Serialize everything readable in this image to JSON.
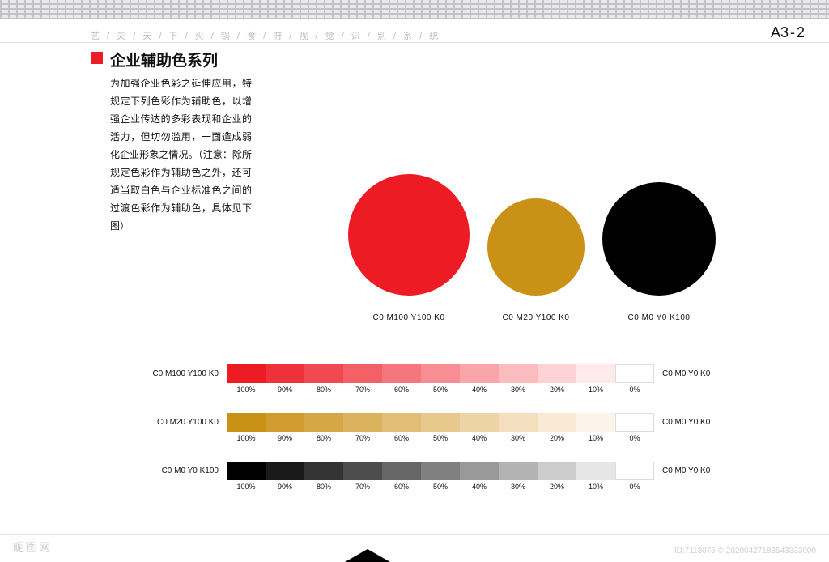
{
  "page": {
    "code_prefix": "A3",
    "code_suffix": "2",
    "header_title": "艺 / 夫 / 天 / 下 / 火 / 锅 / 食 / 府 / 视 / 觉 / 识 / 别 / 系 / 统",
    "section_title": "企业辅助色系列",
    "accent_square_color": "#ed1b23",
    "body_text": "为加强企业色彩之延伸应用，特规定下列色彩作为辅助色，以增强企业传达的多彩表现和企业的活力，但切勿滥用，一面造成弱化企业形象之情况。（注意：除所规定色彩作为辅助色之外，还可适当取白色与企业标准色之间的过渡色彩作为辅助色，具体见下图）"
  },
  "circles": [
    {
      "color": "#ed1b23",
      "diameter": 150,
      "cmyk": "C0  M100 Y100  K0"
    },
    {
      "color": "#c99115",
      "diameter": 120,
      "cmyk": "C0  M20  Y100  K0"
    },
    {
      "color": "#000000",
      "diameter": 140,
      "cmyk": "C0  M0  Y0  K100"
    }
  ],
  "percentages": [
    "100%",
    "90%",
    "80%",
    "70%",
    "60%",
    "50%",
    "40%",
    "30%",
    "20%",
    "10%",
    "0%"
  ],
  "gradient_rows": [
    {
      "left_label": "C0  M100 Y100  K0",
      "right_label": "C0  M0  Y0  K0",
      "swatches": [
        "#ed1b23",
        "#ef3239",
        "#f14950",
        "#f36066",
        "#f5777d",
        "#f78e93",
        "#f9a5a9",
        "#fbbcc0",
        "#fdd3d6",
        "#fee9eb",
        "#ffffff"
      ]
    },
    {
      "left_label": "C0  M20  Y100  K0",
      "right_label": "C0  M0  Y0  K0",
      "swatches": [
        "#c99115",
        "#cf9c2d",
        "#d5a745",
        "#dbb25d",
        "#e1bd75",
        "#e7c88d",
        "#edd3a5",
        "#f3debd",
        "#f9e9d5",
        "#fcf4ea",
        "#ffffff"
      ]
    },
    {
      "left_label": "C0  M0  Y0  K100",
      "right_label": "C0  M0  Y0  K0",
      "swatches": [
        "#000000",
        "#1a1a1a",
        "#333333",
        "#4d4d4d",
        "#666666",
        "#808080",
        "#999999",
        "#b3b3b3",
        "#cccccc",
        "#e6e6e6",
        "#ffffff"
      ]
    }
  ],
  "watermark": {
    "left": "昵图网",
    "right": "ID:7113075 © 20200427183543333000"
  }
}
